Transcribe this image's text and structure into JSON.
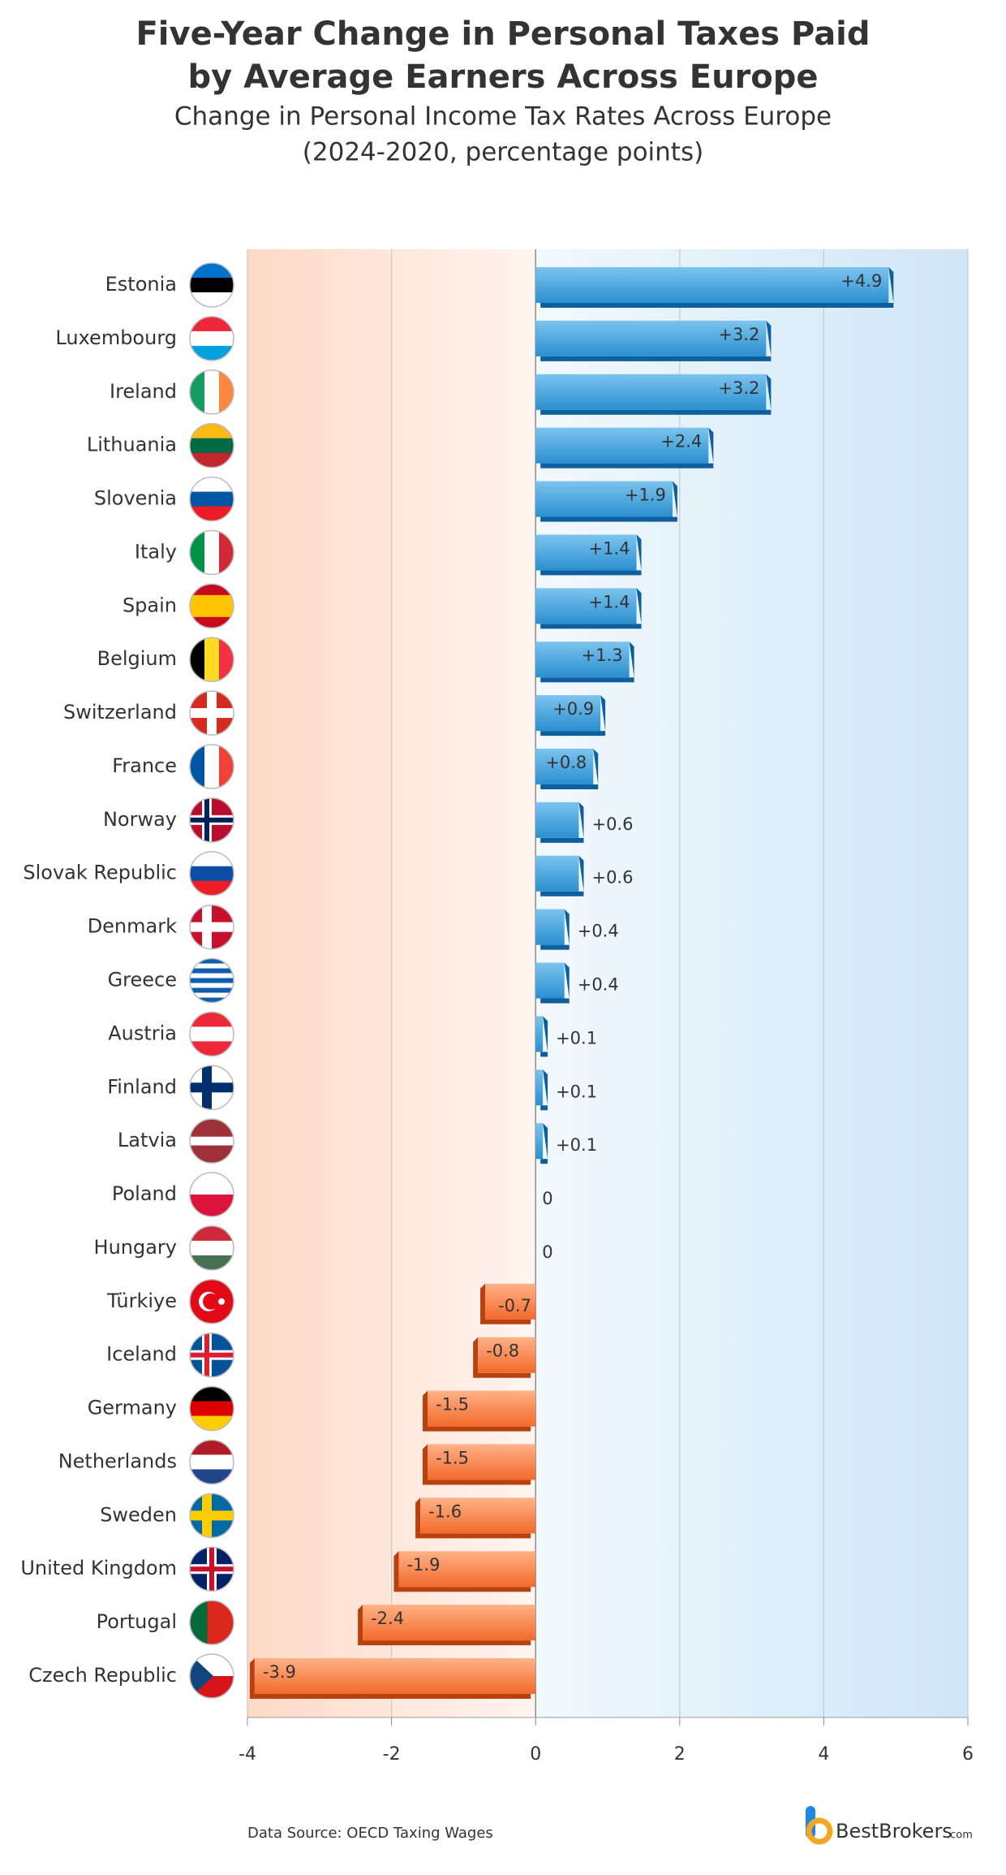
{
  "chart_data": {
    "type": "hbar",
    "title": [
      "Five-Year Change in Personal Taxes Paid",
      "by Average Earners Across Europe"
    ],
    "subtitle": [
      "Change in Personal Income Tax Rates Across Europe",
      "(2024-2020, percentage points)"
    ],
    "categories": [
      "Estonia",
      "Luxembourg",
      "Ireland",
      "Lithuania",
      "Slovenia",
      "Italy",
      "Spain",
      "Belgium",
      "Switzerland",
      "France",
      "Norway",
      "Slovak Republic",
      "Denmark",
      "Greece",
      "Austria",
      "Finland",
      "Latvia",
      "Poland",
      "Hungary",
      "Türkiye",
      "Iceland",
      "Germany",
      "Netherlands",
      "Sweden",
      "United Kingdom",
      "Portugal",
      "Czech Republic"
    ],
    "values": [
      4.9,
      3.2,
      3.2,
      2.4,
      1.9,
      1.4,
      1.4,
      1.3,
      0.9,
      0.8,
      0.6,
      0.6,
      0.4,
      0.4,
      0.1,
      0.1,
      0.1,
      0,
      0,
      -0.7,
      -0.8,
      -1.5,
      -1.5,
      -1.6,
      -1.9,
      -2.4,
      -3.9
    ],
    "value_labels": [
      "+4.9",
      "+3.2",
      "+3.2",
      "+2.4",
      "+1.9",
      "+1.4",
      "+1.4",
      "+1.3",
      "+0.9",
      "+0.8",
      "+0.6",
      "+0.6",
      "+0.4",
      "+0.4",
      "+0.1",
      "+0.1",
      "+0.1",
      "0",
      "0",
      "-0.7",
      "-0.8",
      "-1.5",
      "-1.5",
      "-1.6",
      "-1.9",
      "-2.4",
      "-3.9"
    ],
    "positive_color": "#2a8fd0",
    "negative_color": "#f26a2c",
    "xlim": [
      -4,
      6
    ],
    "xticks": [
      -4,
      -2,
      0,
      2,
      4,
      6
    ],
    "grid": true,
    "source": "Data Source: OECD Taxing Wages",
    "logo": "BestBrokers",
    "logo_suffix": ".com"
  }
}
